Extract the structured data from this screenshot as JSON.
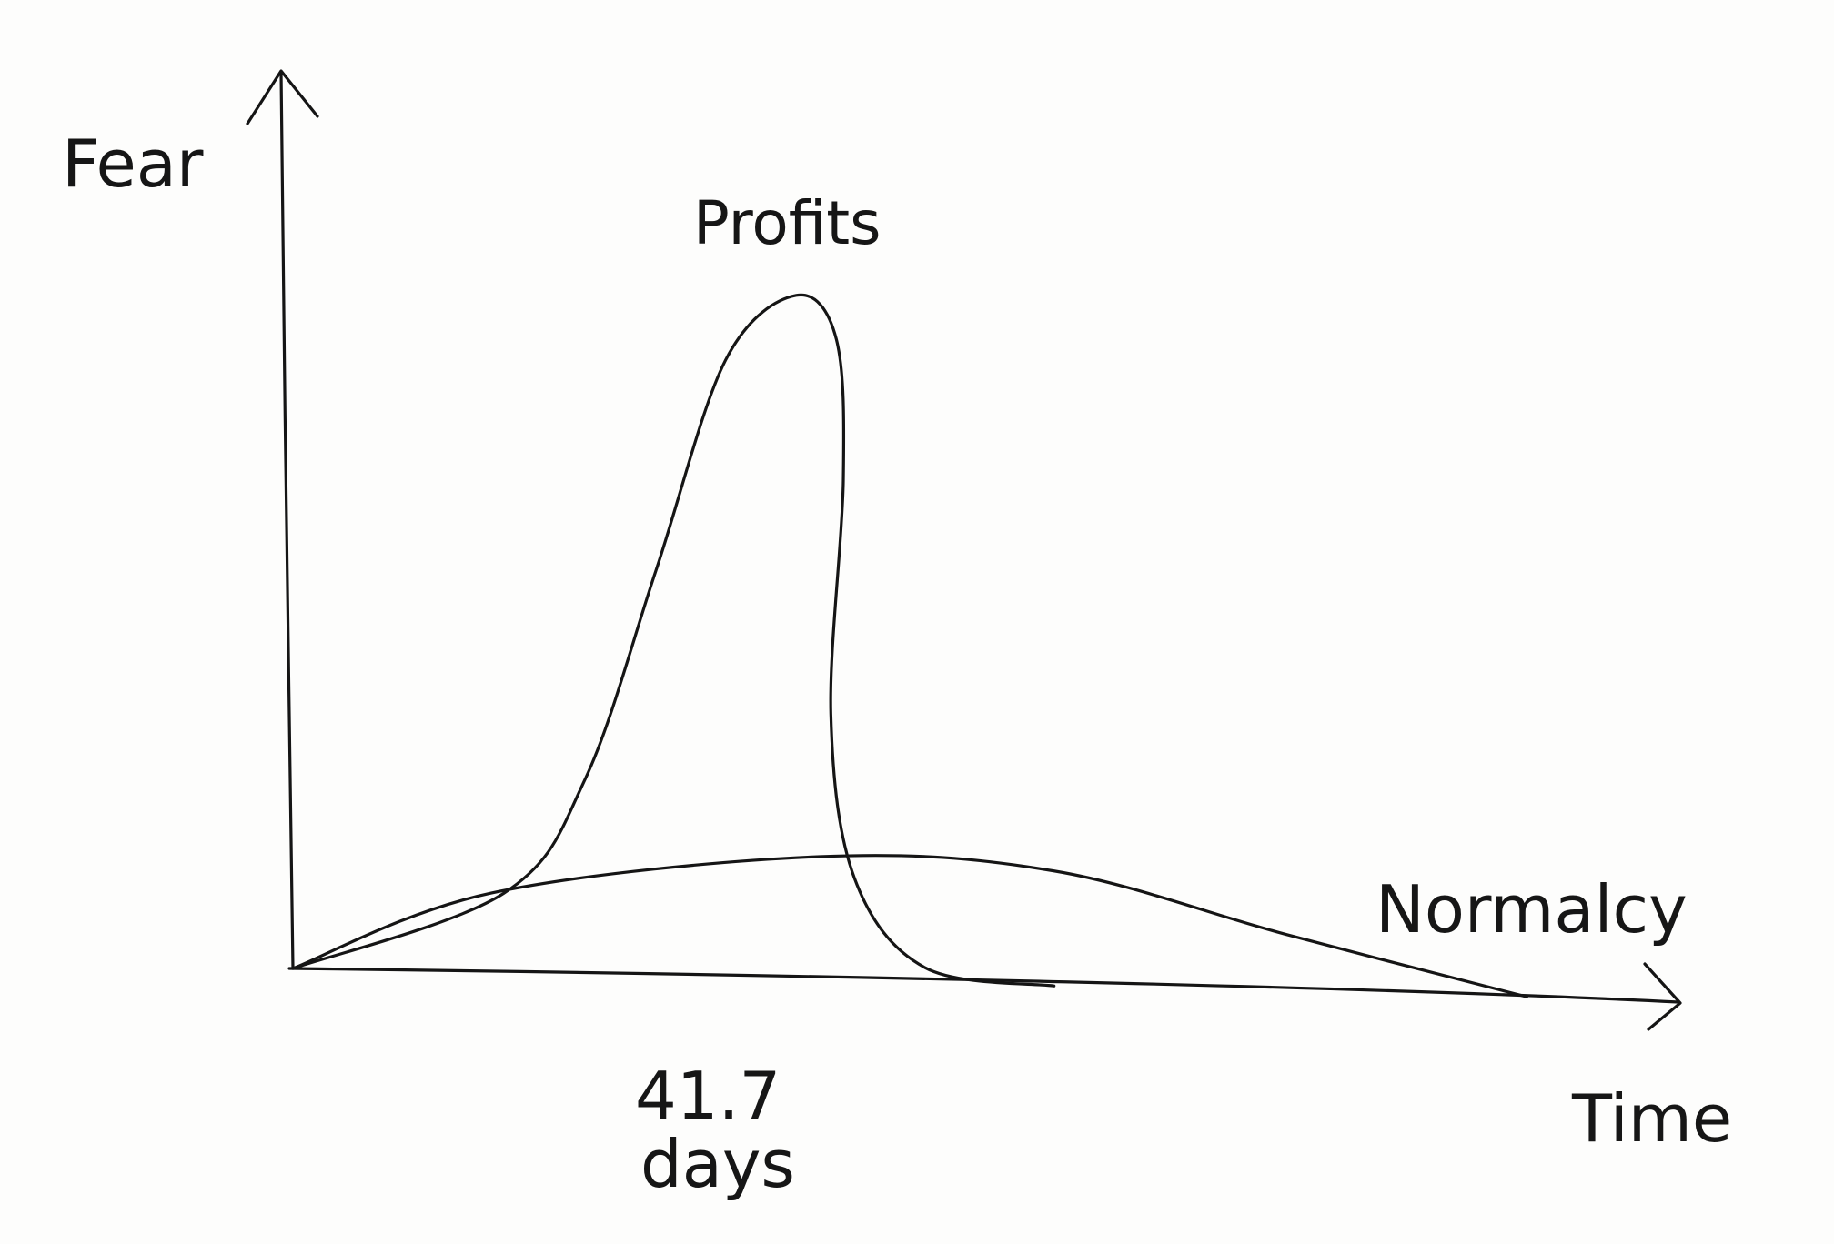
{
  "chart_data": {
    "type": "line",
    "style": "hand-drawn sketch",
    "title": "",
    "xlabel": "Time",
    "ylabel": "Fear",
    "xlim": [
      0,
      100
    ],
    "ylim": [
      0,
      100
    ],
    "grid": false,
    "legend": "none (series labelled directly on curves)",
    "annotations": [
      {
        "text_line1": "41.7",
        "text_line2": "days"
      }
    ],
    "series": [
      {
        "name": "Profits",
        "color": "#151515",
        "points": [
          [
            0,
            0
          ],
          [
            15.2,
            8.9
          ],
          [
            21.1,
            21.9
          ],
          [
            26.2,
            45.3
          ],
          [
            31.2,
            68.8
          ],
          [
            36.3,
            76.2
          ],
          [
            39.2,
            71.4
          ],
          [
            39.7,
            55.7
          ],
          [
            38.8,
            29.7
          ],
          [
            40.5,
            11.5
          ],
          [
            45.6,
            1.7
          ],
          [
            54.9,
            0
          ]
        ]
      },
      {
        "name": "Normalcy",
        "color": "#151515",
        "points": [
          [
            0,
            0
          ],
          [
            14.3,
            8.9
          ],
          [
            38,
            13.8
          ],
          [
            54.9,
            12.8
          ],
          [
            71.7,
            6.3
          ],
          [
            89,
            0
          ]
        ]
      }
    ]
  }
}
